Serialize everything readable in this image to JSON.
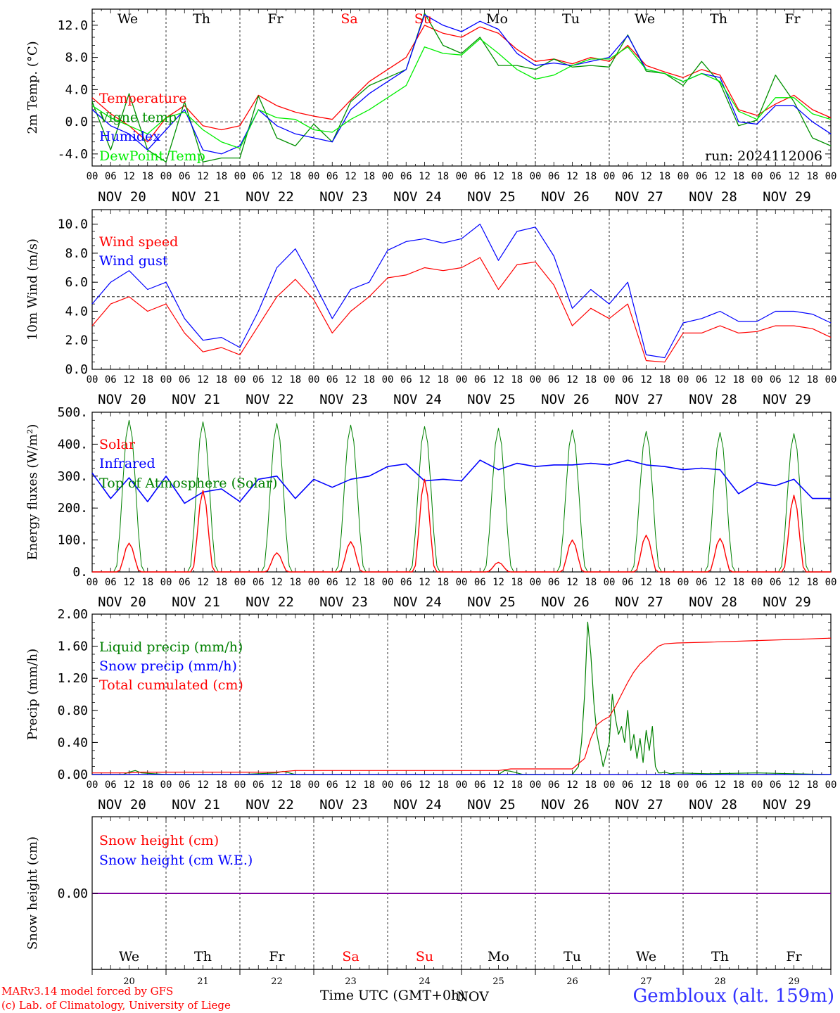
{
  "days_top": [
    "We",
    "Th",
    "Fr",
    "Sa",
    "Su",
    "Mo",
    "Tu",
    "We",
    "Th",
    "Fr"
  ],
  "days_bottom": [
    "We",
    "Th",
    "Fr",
    "Sa",
    "Su",
    "Mo",
    "Tu",
    "We",
    "Th",
    "Fr"
  ],
  "weekend_day_color": "#ff0000",
  "date_labels": [
    "NOV 20",
    "NOV 21",
    "NOV 22",
    "NOV 23",
    "NOV 24",
    "NOV 25",
    "NOV 26",
    "NOV 27",
    "NOV 28",
    "NOV 29"
  ],
  "date_numbers": [
    "20",
    "21",
    "22",
    "23",
    "24",
    "25",
    "26",
    "27",
    "28",
    "29"
  ],
  "hour_ticks": [
    "00",
    "06",
    "12",
    "18"
  ],
  "last_hour_tick": "00",
  "month_label": "NOV",
  "xlabel": "Time UTC (GMT+0h)",
  "credit_line1": "MARv3.14 model forced by GFS",
  "credit_line2": "(c) Lab. of Climatology, University of Liege",
  "station": "Gembloux (alt. 159m)",
  "run_label": "run: 2024112006",
  "chart_data": [
    {
      "type": "line",
      "ylabel": "2m Temp. (°C)",
      "ylim": [
        -5.5,
        14
      ],
      "yticks": [
        -4.0,
        0.0,
        4.0,
        8.0,
        12.0
      ],
      "ytick_labels": [
        "-4.0",
        "0.0",
        "4.0",
        "8.0",
        "12.0"
      ],
      "dashed_hline": 0,
      "series": [
        {
          "name": "Temperature",
          "color": "#ff0000",
          "t": [
            0,
            6,
            12,
            18,
            24,
            30,
            36,
            42,
            48,
            54,
            60,
            66,
            72,
            78,
            84,
            90,
            96,
            102,
            108,
            114,
            120,
            126,
            132,
            138,
            144,
            150,
            156,
            162,
            168,
            174,
            180,
            186,
            192,
            198,
            204,
            210,
            216,
            222,
            228,
            234,
            240
          ],
          "values": [
            3,
            1,
            -0.5,
            -2.5,
            0.5,
            2,
            -0.5,
            -1,
            -0.5,
            3.3,
            2,
            1.2,
            0.7,
            0.3,
            2.7,
            5,
            6.5,
            8,
            12,
            11,
            10.5,
            11.8,
            11,
            9,
            7.5,
            7.8,
            7.2,
            8,
            7.5,
            9.5,
            7,
            6.2,
            5.5,
            6.5,
            5.8,
            1.5,
            0.8,
            2.2,
            3.3,
            1.5,
            0.5
          ]
        },
        {
          "name": "Vigne temp",
          "color": "#009000",
          "t": [
            0,
            6,
            12,
            18,
            24,
            30,
            36,
            42,
            48,
            54,
            60,
            66,
            72,
            78,
            84,
            90,
            96,
            102,
            108,
            114,
            120,
            126,
            132,
            138,
            144,
            150,
            156,
            162,
            168,
            174,
            180,
            186,
            192,
            198,
            204,
            210,
            216,
            222,
            228,
            234,
            240
          ],
          "values": [
            2.5,
            -3.5,
            3.5,
            -3.5,
            -5,
            2.5,
            -5,
            -4.5,
            -4.5,
            3.2,
            -2,
            -3,
            -0.3,
            -2.5,
            2.5,
            4.5,
            5.5,
            6.5,
            13.5,
            9.5,
            8.5,
            10.5,
            7,
            7,
            6.5,
            7.8,
            6.8,
            7,
            6.8,
            10.8,
            6.3,
            6,
            4.5,
            7.5,
            4.8,
            -0.5,
            0.2,
            5.8,
            2.5,
            -2,
            -3
          ]
        },
        {
          "name": "Humidex",
          "color": "#0000ff",
          "t": [
            0,
            6,
            12,
            18,
            24,
            30,
            36,
            42,
            48,
            54,
            60,
            66,
            72,
            78,
            84,
            90,
            96,
            102,
            108,
            114,
            120,
            126,
            132,
            138,
            144,
            150,
            156,
            162,
            168,
            174,
            180,
            186,
            192,
            198,
            204,
            210,
            216,
            222,
            228,
            234,
            240
          ],
          "values": [
            1.5,
            -0.5,
            -1.5,
            -3.5,
            -1,
            1.5,
            -3.5,
            -4,
            -3,
            1.5,
            -0.5,
            -1.5,
            -2,
            -2.5,
            1.5,
            3.5,
            5,
            6.5,
            13.3,
            12,
            11.2,
            12.5,
            11.5,
            8.5,
            7,
            7.3,
            7,
            7.5,
            8,
            10.7,
            6.5,
            6,
            5,
            6,
            5.5,
            0,
            -0.3,
            2,
            2,
            0,
            -1.5
          ]
        },
        {
          "name": "DewPoint Temp",
          "color": "#00ee00",
          "t": [
            0,
            6,
            12,
            18,
            24,
            30,
            36,
            42,
            48,
            54,
            60,
            66,
            72,
            78,
            84,
            90,
            96,
            102,
            108,
            114,
            120,
            126,
            132,
            138,
            144,
            150,
            156,
            162,
            168,
            174,
            180,
            186,
            192,
            198,
            204,
            210,
            216,
            222,
            228,
            234,
            240
          ],
          "values": [
            2,
            0.5,
            -0.5,
            -1.5,
            0.5,
            1.2,
            -1,
            -2.5,
            -3.3,
            1.5,
            0.5,
            0.3,
            -1,
            -1.3,
            0.3,
            1.5,
            3,
            4.5,
            9.3,
            8.5,
            8.3,
            10.3,
            8.5,
            6.5,
            5.3,
            5.8,
            7,
            7.8,
            7.8,
            9.3,
            6.5,
            6,
            5,
            6,
            5,
            1.3,
            0.3,
            3,
            3,
            1,
            0.3
          ]
        }
      ],
      "legend": [
        "Temperature",
        "Vigne temp",
        "Humidex",
        "DewPoint Temp"
      ],
      "legend_placement": "upper-left"
    },
    {
      "type": "line",
      "ylabel": "10m Wind (m/s)",
      "ylim": [
        0,
        11
      ],
      "yticks": [
        0.0,
        2.0,
        4.0,
        6.0,
        8.0,
        10.0
      ],
      "ytick_labels": [
        "0.0",
        "2.0",
        "4.0",
        "6.0",
        "8.0",
        "10.0"
      ],
      "dashed_hline": 5,
      "series": [
        {
          "name": "Wind speed",
          "color": "#ff0000",
          "t": [
            0,
            6,
            12,
            18,
            24,
            30,
            36,
            42,
            48,
            54,
            60,
            66,
            72,
            78,
            84,
            90,
            96,
            102,
            108,
            114,
            120,
            126,
            132,
            138,
            144,
            150,
            156,
            162,
            168,
            174,
            180,
            186,
            192,
            198,
            204,
            210,
            216,
            222,
            228,
            234,
            240
          ],
          "values": [
            3,
            4.5,
            5,
            4,
            4.5,
            2.5,
            1.2,
            1.5,
            1,
            3,
            5,
            6.2,
            4.8,
            2.5,
            4,
            5,
            6.3,
            6.5,
            7,
            6.8,
            7,
            7.7,
            5.5,
            7.2,
            7.4,
            5.8,
            3,
            4.2,
            3.5,
            4.5,
            0.6,
            0.5,
            2.5,
            2.5,
            3,
            2.5,
            2.6,
            3,
            3,
            2.8,
            2.2
          ]
        },
        {
          "name": "Wind gust",
          "color": "#0000ff",
          "t": [
            0,
            6,
            12,
            18,
            24,
            30,
            36,
            42,
            48,
            54,
            60,
            66,
            72,
            78,
            84,
            90,
            96,
            102,
            108,
            114,
            120,
            126,
            132,
            138,
            144,
            150,
            156,
            162,
            168,
            174,
            180,
            186,
            192,
            198,
            204,
            210,
            216,
            222,
            228,
            234,
            240
          ],
          "values": [
            4.5,
            6,
            6.8,
            5.5,
            6,
            3.5,
            2,
            2.2,
            1.5,
            4,
            7,
            8.3,
            6,
            3.5,
            5.5,
            6,
            8.2,
            8.8,
            9,
            8.7,
            9,
            10,
            7.5,
            9.5,
            9.8,
            7.8,
            4.2,
            5.5,
            4.5,
            6,
            1,
            0.8,
            3.2,
            3.5,
            4,
            3.3,
            3.3,
            4,
            4,
            3.8,
            3.2
          ]
        }
      ],
      "legend": [
        "Wind speed",
        "Wind gust"
      ],
      "legend_placement": "upper-left"
    },
    {
      "type": "line",
      "ylabel": "Energy fluxes (W/m²)",
      "ylim": [
        0,
        500
      ],
      "yticks": [
        0,
        100,
        200,
        300,
        400,
        500
      ],
      "ytick_labels": [
        "0.",
        "100.",
        "200.",
        "300.",
        "400.",
        "500."
      ],
      "series": [
        {
          "name": "Solar",
          "color": "#ff0000",
          "peaks": [
            90,
            255,
            60,
            95,
            290,
            30,
            100,
            115,
            105,
            240
          ]
        },
        {
          "name": "Infrared",
          "color": "#0000ff",
          "t": [
            0,
            6,
            12,
            18,
            24,
            30,
            36,
            42,
            48,
            54,
            60,
            66,
            72,
            78,
            84,
            90,
            96,
            102,
            108,
            114,
            120,
            126,
            132,
            138,
            144,
            150,
            156,
            162,
            168,
            174,
            180,
            186,
            192,
            198,
            204,
            210,
            216,
            222,
            228,
            234,
            240
          ],
          "values": [
            310,
            230,
            295,
            220,
            300,
            215,
            250,
            260,
            220,
            290,
            300,
            230,
            290,
            265,
            290,
            300,
            330,
            338,
            285,
            290,
            285,
            350,
            320,
            340,
            330,
            335,
            335,
            340,
            335,
            350,
            335,
            330,
            320,
            325,
            320,
            245,
            280,
            270,
            290,
            230,
            230
          ]
        },
        {
          "name": "Top of Atmosphere (Solar)",
          "color": "#008000",
          "peaks": [
            475,
            470,
            465,
            460,
            455,
            450,
            445,
            440,
            437,
            433
          ]
        }
      ],
      "legend": [
        "Solar",
        "Infrared",
        "Top of Atmosphere (Solar)"
      ],
      "legend_placement": "upper-left"
    },
    {
      "type": "line",
      "ylabel": "Precip (mm/h)",
      "ylim": [
        0,
        2.0
      ],
      "yticks": [
        0.0,
        0.4,
        0.8,
        1.2,
        1.6,
        2.0
      ],
      "ytick_labels": [
        "0.00",
        "0.40",
        "0.80",
        "1.20",
        "1.60",
        "2.00"
      ],
      "series": [
        {
          "name": "Liquid precip (mm/h)",
          "color": "#008000",
          "t": [
            0,
            10,
            12,
            14,
            16,
            24,
            40,
            48,
            60,
            62,
            64,
            66,
            72,
            96,
            132,
            134,
            136,
            138,
            140,
            156,
            158,
            159,
            160,
            161,
            162,
            163,
            164,
            165,
            166,
            168,
            169,
            170,
            171,
            172,
            173,
            174,
            175,
            176,
            177,
            178,
            179,
            180,
            181,
            182,
            183,
            184,
            185,
            186,
            188,
            190,
            200,
            216,
            240
          ],
          "values": [
            0,
            0,
            0.03,
            0.05,
            0.02,
            0,
            0,
            0,
            0.02,
            0.04,
            0.02,
            0,
            0,
            0,
            0,
            0.05,
            0.04,
            0.02,
            0,
            0,
            0.1,
            0.4,
            1.0,
            1.9,
            1.5,
            0.9,
            0.5,
            0.3,
            0.1,
            0.4,
            1.0,
            0.7,
            0.5,
            0.6,
            0.4,
            0.8,
            0.3,
            0.5,
            0.2,
            0.45,
            0.15,
            0.55,
            0.3,
            0.6,
            0.1,
            0.02,
            0.02,
            0.03,
            0.01,
            0.02,
            0.01,
            0.02,
            0
          ]
        },
        {
          "name": "Snow precip (mm/h)",
          "color": "#0000ff",
          "t": [
            0,
            240
          ],
          "values": [
            0,
            0
          ]
        },
        {
          "name": "Total cumulated (cm)",
          "color": "#ff0000",
          "t": [
            0,
            12,
            16,
            60,
            66,
            72,
            96,
            132,
            136,
            156,
            160,
            162,
            164,
            166,
            168,
            170,
            172,
            174,
            176,
            178,
            180,
            182,
            184,
            186,
            190,
            200,
            216,
            240
          ],
          "values": [
            0.02,
            0.02,
            0.03,
            0.03,
            0.05,
            0.05,
            0.05,
            0.05,
            0.07,
            0.07,
            0.2,
            0.45,
            0.62,
            0.68,
            0.72,
            0.85,
            1.0,
            1.15,
            1.28,
            1.38,
            1.45,
            1.53,
            1.6,
            1.63,
            1.64,
            1.65,
            1.67,
            1.7
          ]
        }
      ],
      "legend": [
        "Liquid precip (mm/h)",
        "Snow precip (mm/h)",
        "Total cumulated (cm)"
      ],
      "legend_placement": "upper-left"
    },
    {
      "type": "line",
      "ylabel": "Snow height (cm)",
      "yticks": [
        0.0
      ],
      "ytick_labels": [
        "0.00"
      ],
      "series": [
        {
          "name": "Snow height (cm)",
          "color": "#ff0000",
          "t": [
            0,
            240
          ],
          "values": [
            0,
            0
          ]
        },
        {
          "name": "Snow height (cm W.E.)",
          "color": "#0000ff",
          "t": [
            0,
            240
          ],
          "values": [
            0,
            0
          ]
        }
      ],
      "line_color": "#8000a0",
      "legend": [
        "Snow height (cm)",
        "Snow height (cm W.E.)"
      ],
      "legend_placement": "upper-left"
    }
  ]
}
